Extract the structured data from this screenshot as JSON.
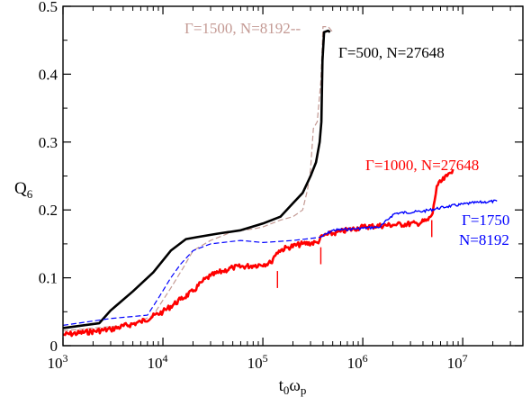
{
  "chart_data": {
    "type": "line",
    "title": "",
    "xlabel": {
      "main": "t",
      "sub1": "0",
      "mid": "ω",
      "sub2": "p"
    },
    "ylabel": {
      "main": "Q",
      "sub": "6"
    },
    "x_scale": "log",
    "xlim": [
      1000,
      40000000
    ],
    "ylim": [
      0,
      0.5
    ],
    "x_ticks": [
      {
        "value": 1000,
        "base": "10",
        "exp": "3"
      },
      {
        "value": 10000,
        "base": "10",
        "exp": "4"
      },
      {
        "value": 100000,
        "base": "10",
        "exp": "5"
      },
      {
        "value": 1000000,
        "base": "10",
        "exp": "6"
      },
      {
        "value": 10000000,
        "base": "10",
        "exp": "7"
      }
    ],
    "y_ticks": [
      {
        "value": 0,
        "label": "0"
      },
      {
        "value": 0.1,
        "label": "0.1"
      },
      {
        "value": 0.2,
        "label": "0.2"
      },
      {
        "value": 0.3,
        "label": "0.3"
      },
      {
        "value": 0.4,
        "label": "0.4"
      },
      {
        "value": 0.5,
        "label": "0.5"
      }
    ],
    "series": [
      {
        "name": "Γ=1500, N=8192",
        "color": "#c49a94",
        "style": "dashed",
        "points": [
          [
            1000,
            0.022
          ],
          [
            5000,
            0.031
          ],
          [
            8000,
            0.045
          ],
          [
            12000,
            0.085
          ],
          [
            16000,
            0.115
          ],
          [
            20000,
            0.14
          ],
          [
            30000,
            0.155
          ],
          [
            50000,
            0.168
          ],
          [
            80000,
            0.172
          ],
          [
            100000,
            0.175
          ],
          [
            150000,
            0.185
          ],
          [
            200000,
            0.19
          ],
          [
            250000,
            0.2
          ],
          [
            280000,
            0.23
          ],
          [
            300000,
            0.26
          ],
          [
            320000,
            0.32
          ],
          [
            350000,
            0.33
          ],
          [
            380000,
            0.39
          ],
          [
            400000,
            0.47
          ],
          [
            450000,
            0.47
          ],
          [
            500000,
            0.462
          ]
        ]
      },
      {
        "name": "Γ=500, N=27648",
        "color": "#000000",
        "style": "solid",
        "points": [
          [
            1000,
            0.026
          ],
          [
            2300,
            0.033
          ],
          [
            3000,
            0.052
          ],
          [
            5000,
            0.08
          ],
          [
            8000,
            0.108
          ],
          [
            12000,
            0.14
          ],
          [
            17000,
            0.157
          ],
          [
            22000,
            0.16
          ],
          [
            35000,
            0.165
          ],
          [
            60000,
            0.17
          ],
          [
            100000,
            0.18
          ],
          [
            150000,
            0.19
          ],
          [
            200000,
            0.21
          ],
          [
            250000,
            0.225
          ],
          [
            300000,
            0.25
          ],
          [
            340000,
            0.27
          ],
          [
            370000,
            0.3
          ],
          [
            385000,
            0.33
          ],
          [
            395000,
            0.42
          ],
          [
            410000,
            0.462
          ],
          [
            450000,
            0.464
          ],
          [
            470000,
            0.462
          ]
        ]
      },
      {
        "name": "Γ=1000, N=27648",
        "color": "#ff0000",
        "style": "solid",
        "points": [
          [
            1000,
            0.016
          ],
          [
            3000,
            0.024
          ],
          [
            6000,
            0.035
          ],
          [
            10000,
            0.05
          ],
          [
            15000,
            0.068
          ],
          [
            20000,
            0.08
          ],
          [
            25000,
            0.095
          ],
          [
            30000,
            0.103
          ],
          [
            40000,
            0.11
          ],
          [
            50000,
            0.115
          ],
          [
            80000,
            0.118
          ],
          [
            120000,
            0.122
          ],
          [
            130000,
            0.132
          ],
          [
            145000,
            0.14
          ],
          [
            180000,
            0.145
          ],
          [
            250000,
            0.15
          ],
          [
            350000,
            0.152
          ],
          [
            400000,
            0.162
          ],
          [
            600000,
            0.168
          ],
          [
            1000000,
            0.175
          ],
          [
            2000000,
            0.178
          ],
          [
            3500000,
            0.18
          ],
          [
            4500000,
            0.185
          ],
          [
            5000000,
            0.195
          ],
          [
            5500000,
            0.235
          ],
          [
            7000000,
            0.25
          ],
          [
            8000000,
            0.26
          ]
        ]
      },
      {
        "name": "Γ=1750, N=8192",
        "color": "#0000ff",
        "style": "mixed",
        "points": [
          [
            1000,
            0.03
          ],
          [
            3000,
            0.04
          ],
          [
            7000,
            0.045
          ],
          [
            9000,
            0.07
          ],
          [
            12000,
            0.1
          ],
          [
            15000,
            0.12
          ],
          [
            20000,
            0.14
          ],
          [
            30000,
            0.15
          ],
          [
            60000,
            0.155
          ],
          [
            100000,
            0.152
          ],
          [
            200000,
            0.155
          ],
          [
            300000,
            0.158
          ],
          [
            380000,
            0.16
          ],
          [
            500000,
            0.17
          ],
          [
            800000,
            0.172
          ],
          [
            1500000,
            0.175
          ],
          [
            1900000,
            0.19
          ],
          [
            2100000,
            0.195
          ],
          [
            4000000,
            0.198
          ],
          [
            7000000,
            0.205
          ],
          [
            12000000,
            0.21
          ],
          [
            22000000,
            0.213
          ]
        ]
      }
    ],
    "annotations": [
      {
        "label": "Γ=1500, N=8192--",
        "color": "#c49a94"
      },
      {
        "label": "Γ=500, N=27648",
        "color": "#000000"
      },
      {
        "label": "Γ=1000, N=27648",
        "color": "#ff0000"
      },
      {
        "label": "Γ=1750",
        "color": "#0000ff"
      },
      {
        "label": "N=8192",
        "color": "#0000ff"
      }
    ],
    "markers": [
      {
        "x": 140000,
        "y_from": 0.085,
        "y_to": 0.11,
        "color": "#ff0000"
      },
      {
        "x": 380000,
        "y_from": 0.12,
        "y_to": 0.145,
        "color": "#ff0000"
      },
      {
        "x": 4900000,
        "y_from": 0.16,
        "y_to": 0.185,
        "color": "#ff0000"
      }
    ],
    "grid": false,
    "legend": "none"
  }
}
